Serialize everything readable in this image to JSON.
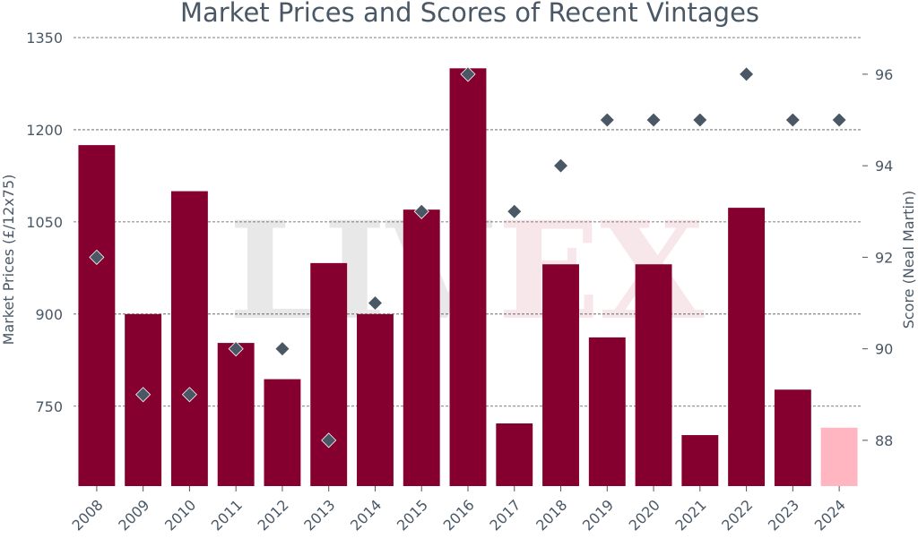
{
  "chart_data": {
    "type": "bar",
    "title": "Market Prices and Scores of Recent Vintages",
    "categories": [
      "2008",
      "2009",
      "2010",
      "2011",
      "2012",
      "2013",
      "2014",
      "2015",
      "2016",
      "2017",
      "2018",
      "2019",
      "2020",
      "2021",
      "2022",
      "2023",
      "2024"
    ],
    "series": [
      {
        "name": "Market Prices",
        "kind": "bar",
        "axis": "left",
        "values": [
          1175,
          900,
          1100,
          853,
          794,
          983,
          900,
          1070,
          1300,
          722,
          981,
          862,
          981,
          703,
          1073,
          777,
          715
        ],
        "color": "#86002f",
        "highlight_last_color": "#ffb6c1"
      },
      {
        "name": "Score",
        "kind": "scatter",
        "axis": "right",
        "values": [
          92,
          89,
          89,
          90,
          90,
          88,
          91,
          93,
          96,
          93,
          94,
          95,
          95,
          95,
          96,
          95,
          95
        ],
        "color": "#4a5866"
      }
    ],
    "ylabel": "Market Prices (£/12x75)",
    "ylabel_right": "Score (Neal Martin)",
    "ylim": [
      620,
      1350
    ],
    "yticks": [
      750,
      900,
      1050,
      1200,
      1350
    ],
    "ylim_right": [
      87,
      96.8
    ],
    "yticks_right": [
      88,
      90,
      92,
      94,
      96
    ],
    "grid": true,
    "watermark": "LIV-EX"
  }
}
